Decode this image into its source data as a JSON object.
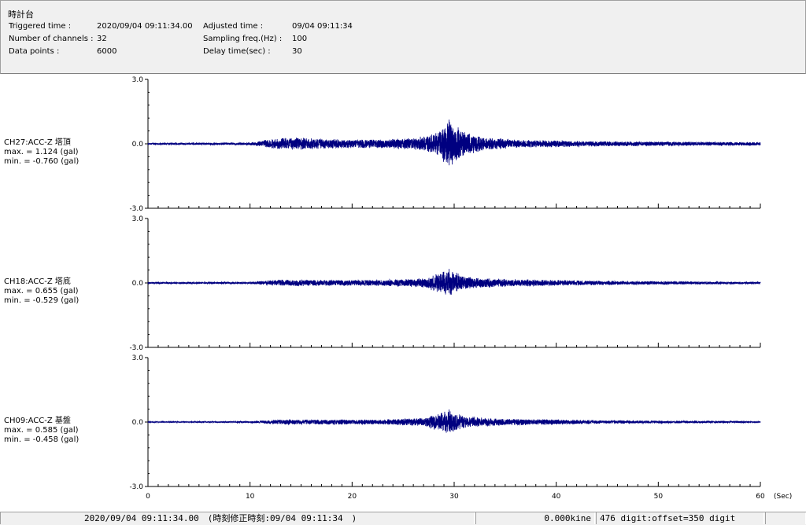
{
  "header": {
    "title": "時計台",
    "triggered_label": "Triggered time :",
    "triggered_value": "2020/09/04 09:11:34.00",
    "channels_label": "Number of channels :",
    "channels_value": "32",
    "datapoints_label": "Data points :",
    "datapoints_value": "6000",
    "adjusted_label": "Adjusted time :",
    "adjusted_value": "09/04 09:11:34",
    "sampling_label": "Sampling freq.(Hz) :",
    "sampling_value": "100",
    "delay_label": "Delay time(sec) :",
    "delay_value": "30"
  },
  "channels": [
    {
      "name": "CH27:ACC-Z 塔頂",
      "max_text": "max. = 1.124 (gal)",
      "min_text": "min. = -0.760 (gal)",
      "max": 1.124,
      "min": -0.76
    },
    {
      "name": "CH18:ACC-Z 塔底",
      "max_text": "max. = 0.655 (gal)",
      "min_text": "min. = -0.529 (gal)",
      "max": 0.655,
      "min": -0.529
    },
    {
      "name": "CH09:ACC-Z 基盤",
      "max_text": "max. = 0.585 (gal)",
      "min_text": "min. = -0.458 (gal)",
      "max": 0.585,
      "min": -0.458
    }
  ],
  "status": {
    "time_text": "2020/09/04 09:11:34.00　(時刻修正時刻:09/04 09:11:34　)",
    "velocity_text": "0.000kine",
    "digit_text": "476 digit:offset=350 digit"
  },
  "chart_data": {
    "type": "line",
    "title": "",
    "xlabel": "(Sec)",
    "ylabel": "",
    "xlim": [
      0,
      60
    ],
    "ylim": [
      -3.0,
      3.0
    ],
    "x_ticks": [
      0,
      10,
      20,
      30,
      40,
      50,
      60
    ],
    "x_tick_labels": [
      "0",
      "10",
      "20",
      "30",
      "40",
      "50",
      "60"
    ],
    "y_tick_labels": [
      "3.0",
      "0.0",
      "-3.0"
    ],
    "sampling_hz": 100,
    "color": "#000080",
    "series": [
      {
        "name": "CH27:ACC-Z 塔頂",
        "max": 1.124,
        "min": -0.76,
        "envelope": [
          [
            0,
            0.05
          ],
          [
            10,
            0.06
          ],
          [
            11.5,
            0.2
          ],
          [
            14,
            0.3
          ],
          [
            18,
            0.22
          ],
          [
            22,
            0.2
          ],
          [
            26,
            0.28
          ],
          [
            28,
            0.45
          ],
          [
            29.5,
            1.12
          ],
          [
            31,
            0.55
          ],
          [
            33,
            0.3
          ],
          [
            37,
            0.18
          ],
          [
            45,
            0.12
          ],
          [
            60,
            0.08
          ]
        ]
      },
      {
        "name": "CH18:ACC-Z 塔底",
        "max": 0.655,
        "min": -0.529,
        "envelope": [
          [
            0,
            0.04
          ],
          [
            10,
            0.05
          ],
          [
            13,
            0.16
          ],
          [
            18,
            0.14
          ],
          [
            23,
            0.15
          ],
          [
            27,
            0.22
          ],
          [
            29.5,
            0.65
          ],
          [
            31,
            0.3
          ],
          [
            35,
            0.18
          ],
          [
            45,
            0.1
          ],
          [
            60,
            0.05
          ]
        ]
      },
      {
        "name": "CH09:ACC-Z 基盤",
        "max": 0.585,
        "min": -0.458,
        "envelope": [
          [
            0,
            0.03
          ],
          [
            10,
            0.04
          ],
          [
            13,
            0.12
          ],
          [
            18,
            0.12
          ],
          [
            23,
            0.12
          ],
          [
            27,
            0.2
          ],
          [
            29.5,
            0.58
          ],
          [
            31,
            0.28
          ],
          [
            35,
            0.16
          ],
          [
            45,
            0.08
          ],
          [
            60,
            0.04
          ]
        ]
      }
    ]
  }
}
